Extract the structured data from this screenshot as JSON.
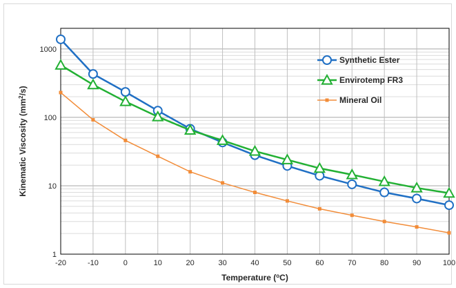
{
  "chart_data": {
    "type": "line",
    "xlabel": "Temperature (",
    "xlabel_sup": "o",
    "xlabel_tail": "C)",
    "ylabel": "Kinematic Viscosity (mm",
    "ylabel_sup": "2",
    "ylabel_tail": "/s)",
    "x": [
      -20,
      -10,
      0,
      10,
      20,
      30,
      40,
      50,
      60,
      70,
      80,
      90,
      100
    ],
    "xlim": [
      -20,
      100
    ],
    "ylim": [
      1,
      2000
    ],
    "yscale": "log",
    "x_ticks": [
      "-20",
      "-10",
      "0",
      "10",
      "20",
      "30",
      "40",
      "50",
      "60",
      "70",
      "80",
      "90",
      "100"
    ],
    "y_ticks": [
      {
        "value": 1,
        "label": "1"
      },
      {
        "value": 10,
        "label": "10"
      },
      {
        "value": 100,
        "label": "100"
      },
      {
        "value": 1000,
        "label": "1000"
      }
    ],
    "grid": true,
    "legend_position": "top-right",
    "series": [
      {
        "name": "Synthetic Ester",
        "color": "#1f6fc4",
        "marker": "circle",
        "values": [
          1380,
          430,
          235,
          125,
          68,
          43,
          28,
          19.5,
          14,
          10.5,
          8,
          6.5,
          5.2
        ]
      },
      {
        "name": "Envirotemp FR3",
        "color": "#22b033",
        "marker": "triangle",
        "values": [
          580,
          300,
          170,
          102,
          65,
          46,
          32,
          24,
          18,
          14.5,
          11.5,
          9.3,
          7.8
        ]
      },
      {
        "name": "Mineral Oil",
        "color": "#f28c38",
        "marker": "square",
        "values": [
          230,
          92,
          46,
          27,
          16,
          11,
          8,
          6,
          4.6,
          3.7,
          3,
          2.5,
          2.05
        ]
      }
    ]
  }
}
